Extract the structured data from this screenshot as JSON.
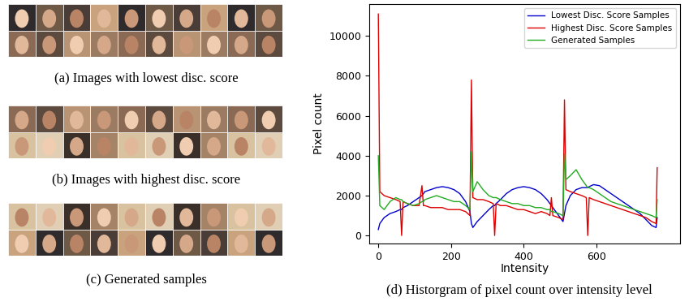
{
  "panels": [
    {
      "caption": "(a) Images with lowest disc. score"
    },
    {
      "caption": "(b) Images with highest disc. score"
    },
    {
      "caption": "(c) Generated samples"
    }
  ],
  "chart_data": {
    "type": "line",
    "title": "(d) Historgram of pixel count over intensity level",
    "x_label": "Intensity",
    "y_label": "Pixel count",
    "x": [
      0,
      4,
      16,
      32,
      48,
      60,
      64,
      68,
      80,
      96,
      112,
      120,
      124,
      128,
      144,
      160,
      176,
      192,
      208,
      224,
      240,
      252,
      256,
      260,
      272,
      288,
      304,
      316,
      320,
      324,
      336,
      352,
      368,
      384,
      400,
      416,
      432,
      448,
      464,
      472,
      476,
      480,
      496,
      508,
      512,
      516,
      528,
      544,
      560,
      572,
      576,
      580,
      592,
      608,
      624,
      640,
      656,
      672,
      688,
      704,
      720,
      736,
      752,
      764,
      767
    ],
    "series": [
      {
        "name": "Lowest Disc. Score Samples",
        "color": "#0000cc",
        "values": [
          300,
          600,
          900,
          1100,
          1200,
          1300,
          1300,
          1400,
          1500,
          1700,
          1900,
          2000,
          2100,
          2200,
          2300,
          2400,
          2450,
          2400,
          2300,
          2100,
          1700,
          1200,
          600,
          400,
          700,
          1000,
          1300,
          1500,
          1500,
          1600,
          1800,
          2100,
          2300,
          2400,
          2450,
          2400,
          2300,
          2100,
          1800,
          1600,
          1500,
          1400,
          1000,
          700,
          1100,
          1500,
          2000,
          2300,
          2400,
          2400,
          2400,
          2450,
          2550,
          2500,
          2300,
          2100,
          1900,
          1700,
          1500,
          1300,
          1100,
          800,
          500,
          400,
          900
        ]
      },
      {
        "name": "Highest Disc. Score Samples",
        "color": "#dd0000",
        "values": [
          11100,
          2200,
          2000,
          1900,
          1800,
          1700,
          0,
          1700,
          1600,
          1500,
          1500,
          2500,
          1500,
          1500,
          1400,
          1400,
          1400,
          1300,
          1300,
          1300,
          1200,
          1000,
          7800,
          1900,
          1800,
          1800,
          1700,
          1600,
          0,
          1600,
          1500,
          1500,
          1400,
          1300,
          1300,
          1200,
          1100,
          1200,
          1100,
          1000,
          1900,
          1000,
          900,
          800,
          6800,
          2300,
          2200,
          2100,
          2000,
          1900,
          0,
          1900,
          1800,
          1700,
          1600,
          1500,
          1400,
          1300,
          1200,
          1100,
          1000,
          900,
          700,
          600,
          3400
        ]
      },
      {
        "name": "Generated Samples",
        "color": "#22aa22",
        "values": [
          4000,
          1500,
          1300,
          1700,
          1900,
          1800,
          1800,
          1700,
          1600,
          1500,
          1600,
          1700,
          1700,
          1800,
          1900,
          2000,
          1900,
          1800,
          1700,
          1700,
          1500,
          1300,
          4200,
          2200,
          2700,
          2300,
          2000,
          1900,
          1900,
          1900,
          1800,
          1700,
          1600,
          1600,
          1500,
          1500,
          1400,
          1400,
          1300,
          1300,
          1200,
          1200,
          1100,
          1000,
          4100,
          2800,
          3000,
          3300,
          2800,
          2500,
          2400,
          2400,
          2300,
          2100,
          1900,
          1700,
          1600,
          1500,
          1400,
          1300,
          1200,
          1100,
          1000,
          900,
          1800
        ]
      }
    ],
    "xlim": [
      -25,
      830
    ],
    "xticks": [
      0,
      200,
      400,
      600
    ],
    "ylim": [
      -400,
      11600
    ],
    "yticks": [
      0,
      2000,
      4000,
      6000,
      8000,
      10000
    ],
    "legend": "upper right",
    "grid": false
  }
}
